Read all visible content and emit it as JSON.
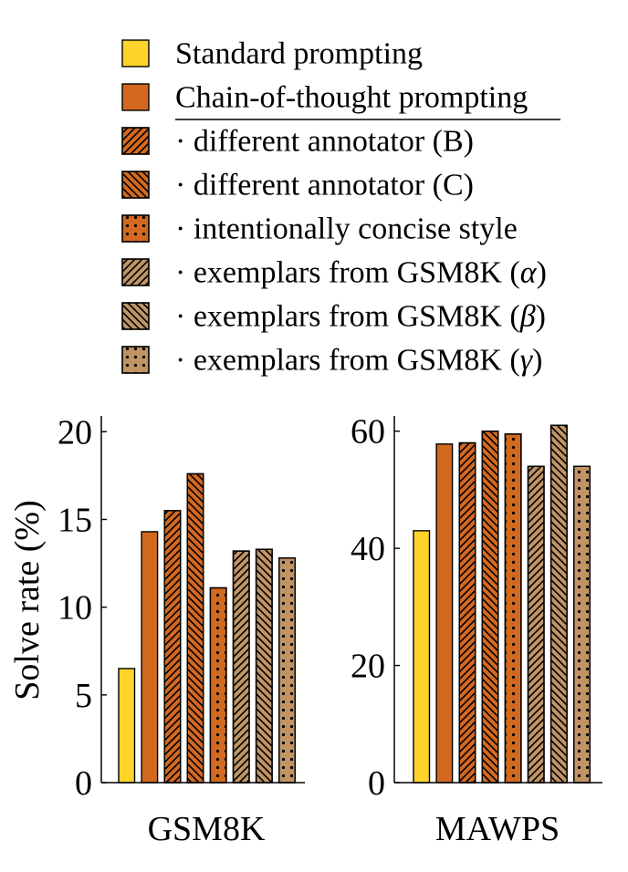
{
  "chart_data": {
    "type": "bar",
    "legend": [
      {
        "id": "standard",
        "label": "Standard prompting",
        "color": "#ffd42a",
        "pattern": "none"
      },
      {
        "id": "cot",
        "label": "Chain-of-thought prompting",
        "color": "#d3691e",
        "pattern": "none"
      },
      {
        "id": "annB",
        "label": "· different annotator (B)",
        "color": "#d3691e",
        "pattern": "ne-lines"
      },
      {
        "id": "annC",
        "label": "· different annotator (C)",
        "color": "#d3691e",
        "pattern": "nw-lines"
      },
      {
        "id": "concise",
        "label": "· intentionally concise style",
        "color": "#d3691e",
        "pattern": "dots"
      },
      {
        "id": "gsmA",
        "label": "· exemplars from GSM8K (",
        "sym": "α",
        "close": ")",
        "color": "#c09465",
        "pattern": "ne-lines"
      },
      {
        "id": "gsmB",
        "label": "· exemplars from GSM8K (",
        "sym": "β",
        "close": ")",
        "color": "#c09465",
        "pattern": "nw-lines"
      },
      {
        "id": "gsmG",
        "label": "· exemplars from GSM8K (",
        "sym": "γ",
        "close": ")",
        "color": "#c09465",
        "pattern": "dots"
      }
    ],
    "panels": [
      {
        "xlabel": "GSM8K",
        "ylabel": "Solve rate (%)",
        "ylim": [
          0,
          20
        ],
        "yticks": [
          0,
          5,
          10,
          15,
          20
        ],
        "values": [
          6.5,
          14.3,
          15.5,
          17.6,
          11.1,
          13.2,
          13.3,
          12.8
        ]
      },
      {
        "xlabel": "MAWPS",
        "ylabel": "",
        "ylim": [
          0,
          60
        ],
        "yticks": [
          0,
          20,
          40,
          60
        ],
        "values": [
          43.0,
          57.8,
          58.0,
          60.0,
          59.5,
          54.0,
          61.0,
          54.0
        ]
      }
    ]
  }
}
